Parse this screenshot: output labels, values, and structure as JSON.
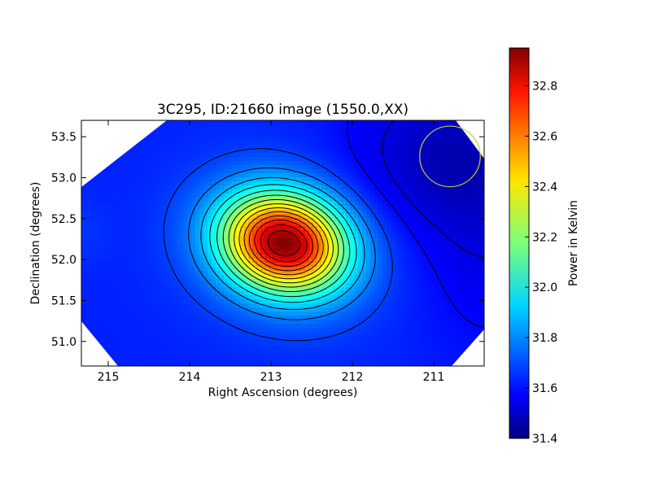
{
  "chart_data": {
    "type": "heatmap",
    "title": "3C295, ID:21660 image (1550.0,XX)",
    "xlabel": "Right Ascension (degrees)",
    "ylabel": "Declination (degrees)",
    "xlim": [
      215.33,
      210.38
    ],
    "ylim": [
      50.7,
      53.7
    ],
    "x_ticks": [
      215,
      214,
      213,
      212,
      211
    ],
    "x_tick_labels": [
      "215",
      "214",
      "213",
      "212",
      "211"
    ],
    "y_ticks": [
      51.0,
      51.5,
      52.0,
      52.5,
      53.0,
      53.5
    ],
    "y_tick_labels": [
      "51.0",
      "51.5",
      "52.0",
      "52.5",
      "53.0",
      "53.5"
    ],
    "colorbar": {
      "label": "Power in Kelvin",
      "range": [
        31.4,
        32.95
      ],
      "ticks": [
        31.4,
        31.6,
        31.8,
        32.0,
        32.2,
        32.4,
        32.6,
        32.8
      ],
      "tick_labels": [
        "31.4",
        "31.6",
        "31.8",
        "32.0",
        "32.2",
        "32.4",
        "32.6",
        "32.8"
      ],
      "colormap": "jet"
    },
    "source": {
      "ra": 212.84,
      "dec": 52.2,
      "peak": 32.95
    },
    "background_level": 31.64,
    "beam_circle": {
      "ra": 210.8,
      "dec": 53.26,
      "radius_deg": 0.37,
      "color": "#cccc33"
    },
    "grid": false,
    "legend": "none"
  }
}
